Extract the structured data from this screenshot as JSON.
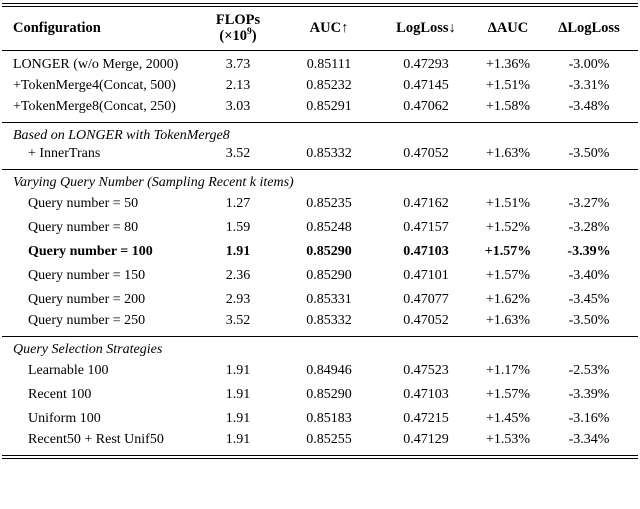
{
  "table": {
    "header": {
      "configuration": "Configuration",
      "flops_line1": "FLOPs",
      "flops_line2_pre": "(×10",
      "flops_sup": "9",
      "flops_line2_post": ")",
      "auc": "AUC↑",
      "logloss": "LogLoss↓",
      "delta_auc": "ΔAUC",
      "delta_logloss": "ΔLogLoss"
    },
    "sections": [
      {
        "rows": [
          {
            "config": "LONGER (w/o Merge, 2000)",
            "flops": "3.73",
            "auc": "0.85111",
            "logloss": "0.47293",
            "delta_auc": "+1.36%",
            "delta_logloss": "-3.00%"
          },
          {
            "config": "+TokenMerge4(Concat, 500)",
            "flops": "2.13",
            "auc": "0.85232",
            "logloss": "0.47145",
            "delta_auc": "+1.51%",
            "delta_logloss": "-3.31%"
          },
          {
            "config": "+TokenMerge8(Concat, 250)",
            "flops": "3.03",
            "auc": "0.85291",
            "logloss": "0.47062",
            "delta_auc": "+1.58%",
            "delta_logloss": "-3.48%"
          }
        ]
      },
      {
        "header": "Based on LONGER with TokenMerge8",
        "rows": [
          {
            "config": "+ InnerTrans",
            "flops": "3.52",
            "auc": "0.85332",
            "logloss": "0.47052",
            "delta_auc": "+1.63%",
            "delta_logloss": "-3.50%"
          }
        ]
      },
      {
        "header": "Varying Query Number (Sampling Recent k items)",
        "rows": [
          {
            "config": "Query number = 50",
            "flops": "1.27",
            "auc": "0.85235",
            "logloss": "0.47162",
            "delta_auc": "+1.51%",
            "delta_logloss": "-3.27%"
          },
          {
            "config": "Query number = 80",
            "flops": "1.59",
            "auc": "0.85248",
            "logloss": "0.47157",
            "delta_auc": "+1.52%",
            "delta_logloss": "-3.28%"
          },
          {
            "config": "Query number = 100",
            "flops": "1.91",
            "auc": "0.85290",
            "logloss": "0.47103",
            "delta_auc": "+1.57%",
            "delta_logloss": "-3.39%"
          },
          {
            "config": "Query number = 150",
            "flops": "2.36",
            "auc": "0.85290",
            "logloss": "0.47101",
            "delta_auc": "+1.57%",
            "delta_logloss": "-3.40%"
          },
          {
            "config": "Query number = 200",
            "flops": "2.93",
            "auc": "0.85331",
            "logloss": "0.47077",
            "delta_auc": "+1.62%",
            "delta_logloss": "-3.45%"
          },
          {
            "config": "Query number = 250",
            "flops": "3.52",
            "auc": "0.85332",
            "logloss": "0.47052",
            "delta_auc": "+1.63%",
            "delta_logloss": "-3.50%"
          }
        ]
      },
      {
        "header": "Query Selection Strategies",
        "rows": [
          {
            "config": "Learnable 100",
            "flops": "1.91",
            "auc": "0.84946",
            "logloss": "0.47523",
            "delta_auc": "+1.17%",
            "delta_logloss": "-2.53%"
          },
          {
            "config": "Recent 100",
            "flops": "1.91",
            "auc": "0.85290",
            "logloss": "0.47103",
            "delta_auc": "+1.57%",
            "delta_logloss": "-3.39%"
          },
          {
            "config": "Uniform 100",
            "flops": "1.91",
            "auc": "0.85183",
            "logloss": "0.47215",
            "delta_auc": "+1.45%",
            "delta_logloss": "-3.16%"
          },
          {
            "config": "Recent50 + Rest Unif50",
            "flops": "1.91",
            "auc": "0.85255",
            "logloss": "0.47129",
            "delta_auc": "+1.53%",
            "delta_logloss": "-3.34%"
          }
        ]
      }
    ]
  }
}
